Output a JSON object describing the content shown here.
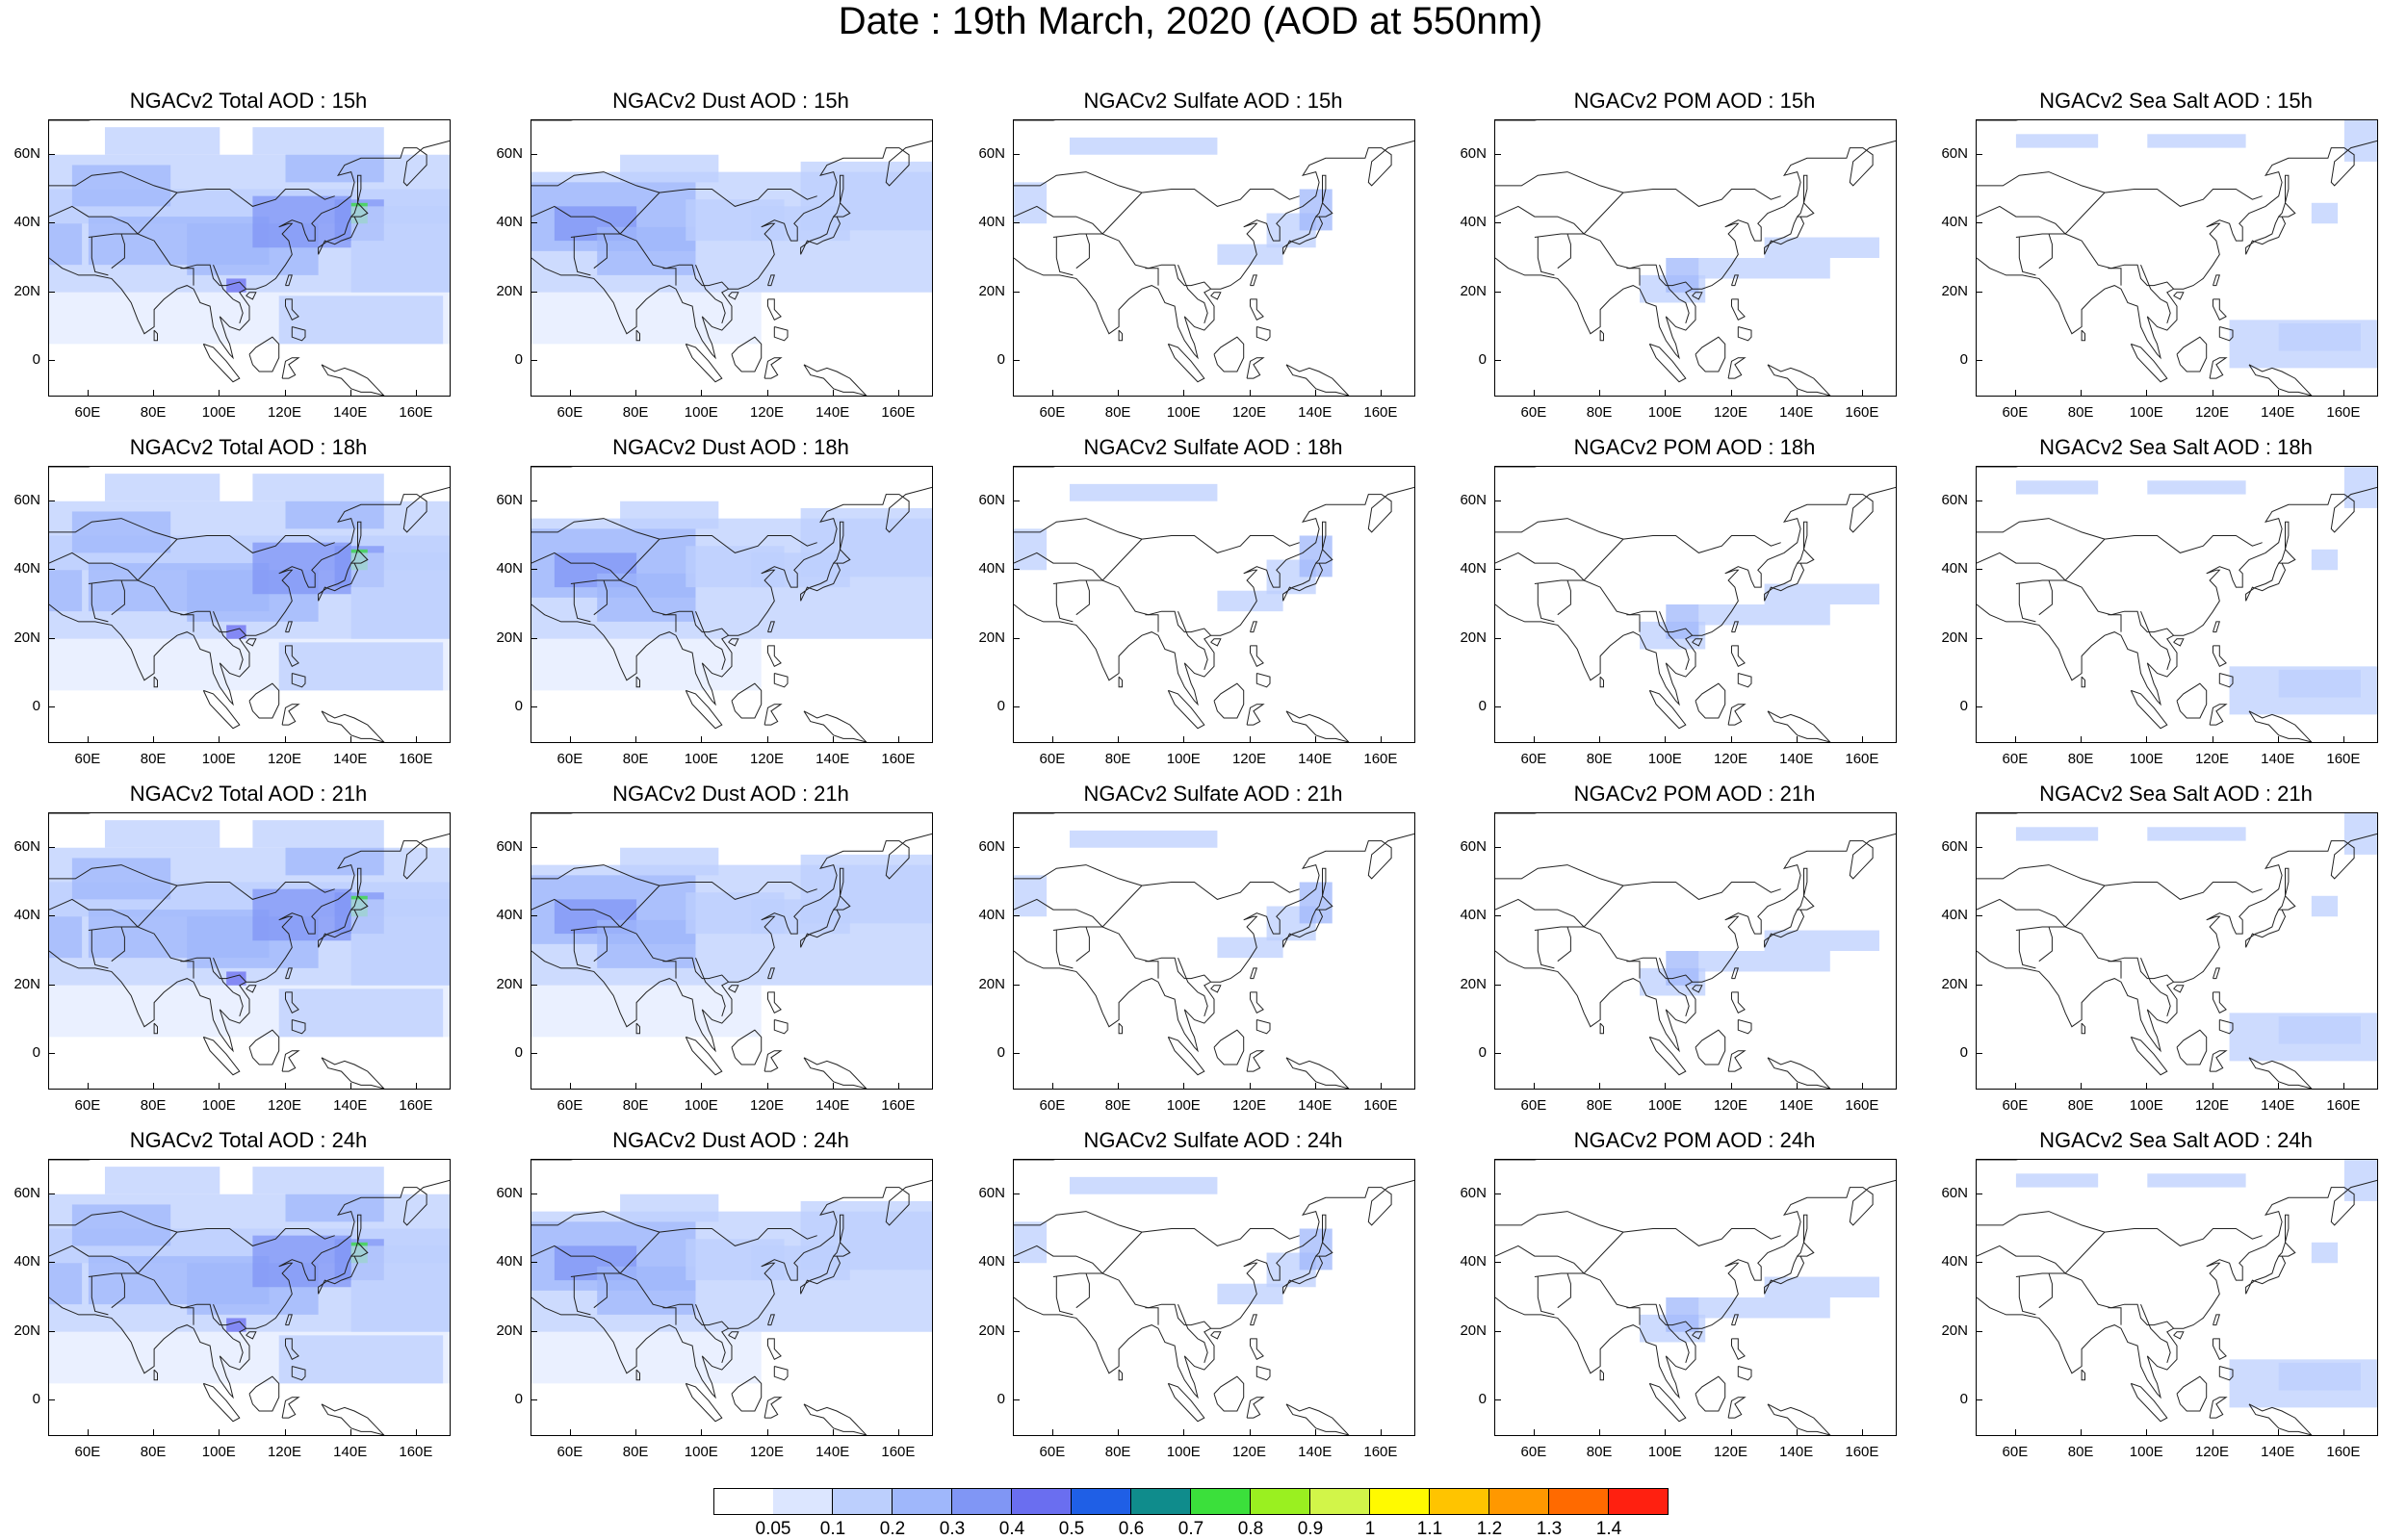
{
  "title": "Date : 19th March, 2020 (AOD at 550nm)",
  "lat_labels": [
    "60N",
    "40N",
    "20N",
    "0"
  ],
  "lon_labels": [
    "60E",
    "80E",
    "100E",
    "120E",
    "140E",
    "160E"
  ],
  "panels": [
    [
      "NGACv2 Total AOD : 15h",
      "NGACv2 Dust AOD : 15h",
      "NGACv2 Sulfate AOD : 15h",
      "NGACv2 POM AOD : 15h",
      "NGACv2 Sea Salt AOD : 15h"
    ],
    [
      "NGACv2 Total AOD : 18h",
      "NGACv2 Dust AOD : 18h",
      "NGACv2 Sulfate AOD : 18h",
      "NGACv2 POM AOD : 18h",
      "NGACv2 Sea Salt AOD : 18h"
    ],
    [
      "NGACv2 Total AOD : 21h",
      "NGACv2 Dust AOD : 21h",
      "NGACv2 Sulfate AOD : 21h",
      "NGACv2 POM AOD : 21h",
      "NGACv2 Sea Salt AOD : 21h"
    ],
    [
      "NGACv2 Total AOD : 24h",
      "NGACv2 Dust AOD : 24h",
      "NGACv2 Sulfate AOD : 24h",
      "NGACv2 POM AOD : 24h",
      "NGACv2 Sea Salt  AOD : 24h"
    ]
  ],
  "colorbar": {
    "labels": [
      "0.05",
      "0.1",
      "0.2",
      "0.3",
      "0.4",
      "0.5",
      "0.6",
      "0.7",
      "0.8",
      "0.9",
      "1",
      "1.1",
      "1.2",
      "1.3",
      "1.4"
    ],
    "colors": [
      "#ffffff",
      "#dce6ff",
      "#bccffd",
      "#9fb7fb",
      "#8096f5",
      "#6a6ef0",
      "#1f5fe6",
      "#0f8c8c",
      "#3be03b",
      "#9af020",
      "#d2f549",
      "#fffa00",
      "#ffc400",
      "#ff9800",
      "#ff6a00",
      "#ff2010"
    ]
  }
}
